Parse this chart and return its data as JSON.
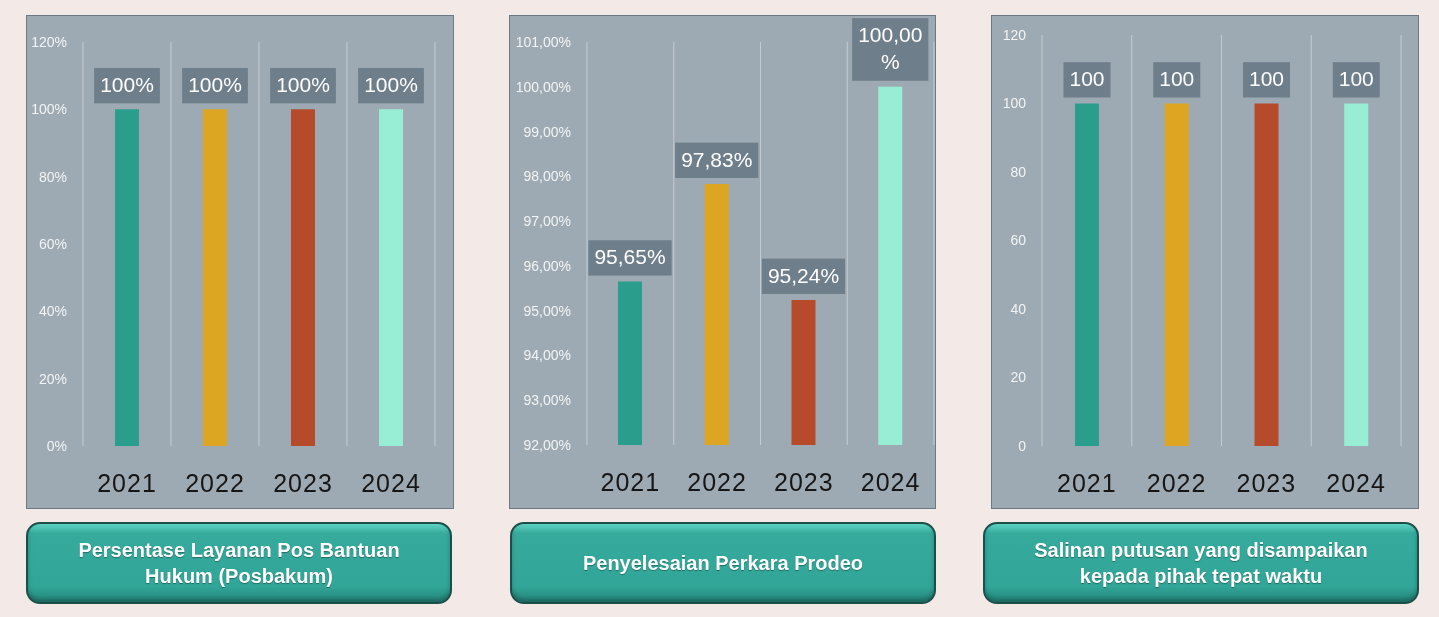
{
  "chart_data": [
    {
      "type": "bar",
      "title": "Persentase Layanan Pos Bantuan Hukum (Posbakum)",
      "categories": [
        "2021",
        "2022",
        "2023",
        "2024"
      ],
      "values": [
        100,
        100,
        100,
        100
      ],
      "colors": [
        "#2a9d8c",
        "#dca522",
        "#b54b2a",
        "#98eed5"
      ],
      "value_labels": [
        "100%",
        "100%",
        "100%",
        "100%"
      ],
      "ylim": [
        0,
        120
      ],
      "yticks": [
        {
          "value": 0,
          "label": "0%"
        },
        {
          "value": 20,
          "label": "20%"
        },
        {
          "value": 40,
          "label": "40%"
        },
        {
          "value": 60,
          "label": "60%"
        },
        {
          "value": 80,
          "label": "80%"
        },
        {
          "value": 100,
          "label": "100%"
        },
        {
          "value": 120,
          "label": "120%"
        }
      ],
      "grid": "x"
    },
    {
      "type": "bar",
      "title": "Penyelesaian Perkara Prodeo",
      "categories": [
        "2021",
        "2022",
        "2023",
        "2024"
      ],
      "values": [
        95.65,
        97.83,
        95.24,
        100
      ],
      "colors": [
        "#2a9d8c",
        "#dca522",
        "#b54b2a",
        "#98eed5"
      ],
      "value_labels": [
        "95,65%",
        "97,83%",
        "95,24%",
        "100,00%"
      ],
      "ylim": [
        92,
        101
      ],
      "yticks": [
        {
          "value": 92,
          "label": "92,00%"
        },
        {
          "value": 93,
          "label": "93,00%"
        },
        {
          "value": 94,
          "label": "94,00%"
        },
        {
          "value": 95,
          "label": "95,00%"
        },
        {
          "value": 96,
          "label": "96,00%"
        },
        {
          "value": 97,
          "label": "97,00%"
        },
        {
          "value": 98,
          "label": "98,00%"
        },
        {
          "value": 99,
          "label": "99,00%"
        },
        {
          "value": 100,
          "label": "100,00%"
        },
        {
          "value": 101,
          "label": "101,00%"
        }
      ],
      "grid": "x"
    },
    {
      "type": "bar",
      "title": "Salinan putusan yang disampaikan kepada pihak tepat waktu",
      "categories": [
        "2021",
        "2022",
        "2023",
        "2024"
      ],
      "values": [
        100,
        100,
        100,
        100
      ],
      "colors": [
        "#2a9d8c",
        "#dca522",
        "#b54b2a",
        "#98eed5"
      ],
      "data_labels": true,
      "ylim": [
        0,
        120
      ],
      "yticks": [
        0,
        20,
        40,
        60,
        80,
        100,
        120
      ],
      "grid": "x"
    }
  ]
}
